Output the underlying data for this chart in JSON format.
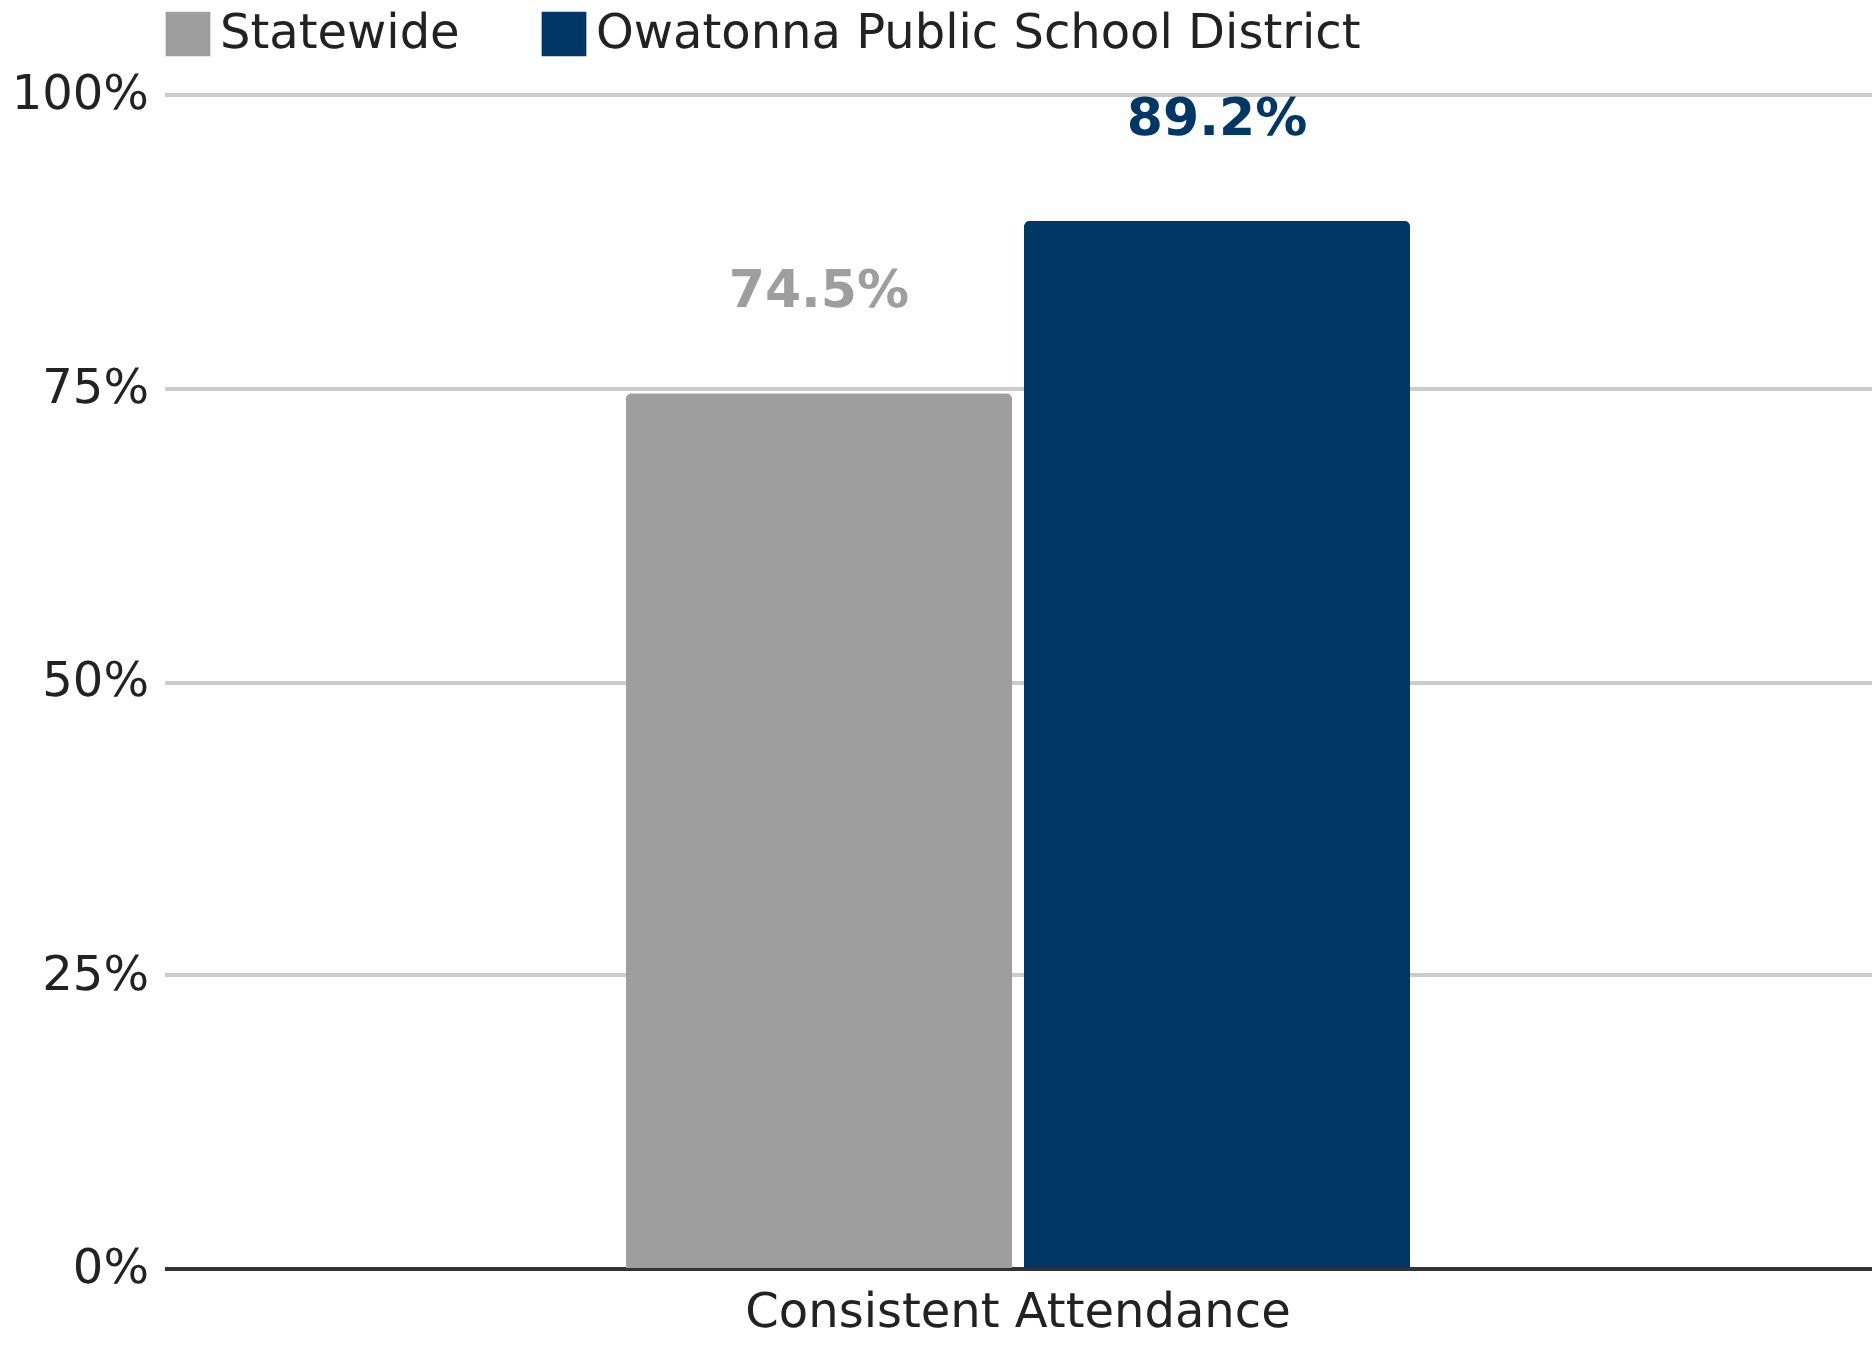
{
  "chart_data": {
    "type": "bar",
    "categories": [
      "Consistent Attendance"
    ],
    "series": [
      {
        "name": "Statewide",
        "color": "#9e9e9e",
        "values": [
          74.5
        ],
        "value_labels": [
          "74.5%"
        ]
      },
      {
        "name": "Owatonna Public School District",
        "color": "#003764",
        "values": [
          89.2
        ],
        "value_labels": [
          "89.2%"
        ]
      }
    ],
    "ylim": [
      0,
      100
    ],
    "yticks": [
      {
        "value": 0,
        "label": "0%"
      },
      {
        "value": 25,
        "label": "25%"
      },
      {
        "value": 50,
        "label": "50%"
      },
      {
        "value": 75,
        "label": "75%"
      },
      {
        "value": 100,
        "label": "100%"
      }
    ],
    "grid": "y",
    "legend": "top"
  }
}
